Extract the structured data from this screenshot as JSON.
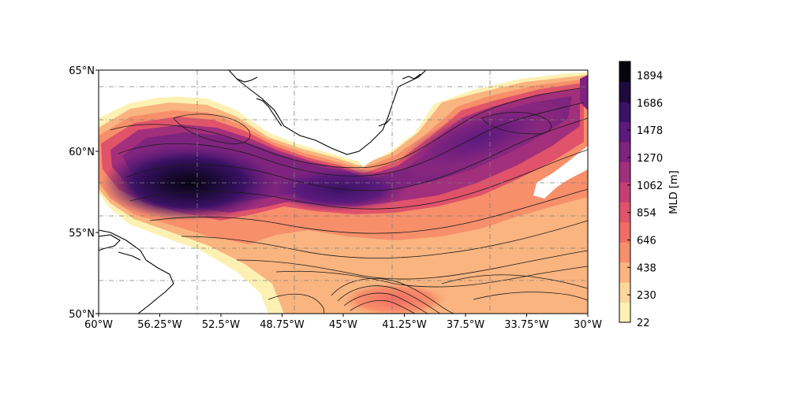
{
  "map": {
    "lon_ticks": [
      "60°W",
      "56.25°W",
      "52.5°W",
      "48.75°W",
      "45°W",
      "41.25°W",
      "37.5°W",
      "33.75°W",
      "30°W"
    ],
    "lat_ticks": [
      "65°N",
      "60°N",
      "55°N",
      "50°N"
    ],
    "extent": {
      "lon_min": -60,
      "lon_max": -30,
      "lat_min": 50,
      "lat_max": 65
    }
  },
  "colorbar": {
    "label": "MLD [m]",
    "tick_labels": [
      "1894",
      "1686",
      "1478",
      "1270",
      "1062",
      "854",
      "646",
      "438",
      "230",
      "22"
    ],
    "min": 22,
    "max": 1998,
    "colormap": "magma_r",
    "colors": [
      "#fcf1b3",
      "#fbd79a",
      "#f9b47f",
      "#f78f6b",
      "#f16d63",
      "#e0536a",
      "#c43e74",
      "#a22f7b",
      "#7e247f",
      "#5b1a7c",
      "#3b1265",
      "#1e0a3c",
      "#08040f"
    ]
  },
  "colors": {
    "land": "#ffffff",
    "coast": "#000000",
    "contour": "#1a1a1a",
    "grid": "#7f7f7f"
  }
}
